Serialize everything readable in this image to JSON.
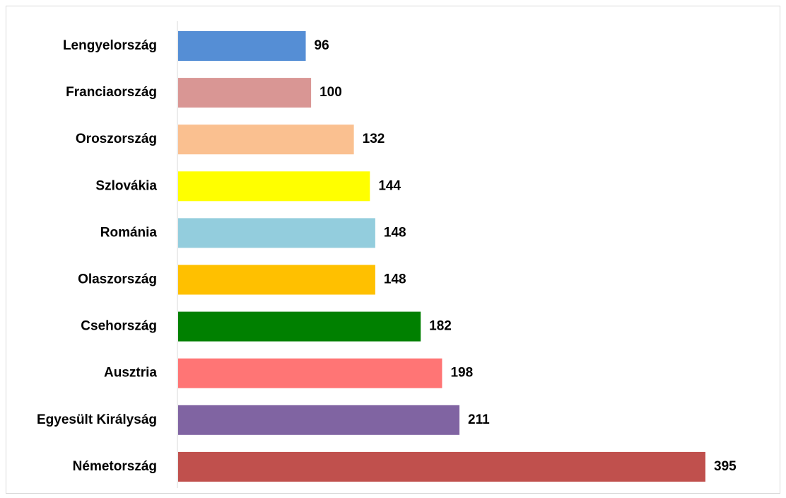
{
  "chart_data": {
    "type": "bar",
    "orientation": "horizontal",
    "categories": [
      "Lengyelország",
      "Franciaország",
      "Oroszország",
      "Szlovákia",
      "Románia",
      "Olaszország",
      "Csehország",
      "Ausztria",
      "Egyesült Királyság",
      "Németország"
    ],
    "values": [
      96,
      100,
      132,
      144,
      148,
      148,
      182,
      198,
      211,
      395
    ],
    "colors": [
      "#558ed5",
      "#d99694",
      "#fac090",
      "#ffff00",
      "#93cddd",
      "#ffc000",
      "#008000",
      "#ff7575",
      "#8064a2",
      "#c0504d"
    ]
  }
}
